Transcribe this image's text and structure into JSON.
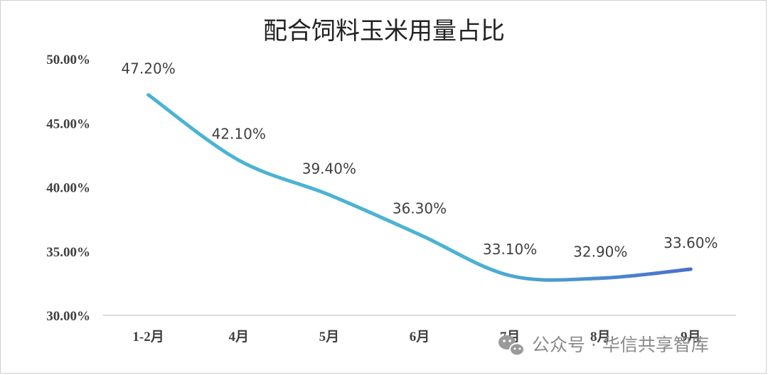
{
  "chart_data": {
    "type": "line",
    "title": "配合饲料玉米用量占比",
    "xlabel": "",
    "ylabel": "",
    "categories": [
      "1-2月",
      "4月",
      "5月",
      "6月",
      "7月",
      "8月",
      "9月"
    ],
    "series": [
      {
        "values": [
          47.2,
          42.1,
          39.4,
          36.3,
          33.1,
          32.9,
          33.6
        ]
      }
    ],
    "data_labels": [
      "47.20%",
      "42.10%",
      "39.40%",
      "36.30%",
      "33.10%",
      "32.90%",
      "33.60%"
    ],
    "ylim": [
      30,
      50
    ],
    "yticks": [
      "30.00%",
      "35.00%",
      "40.00%",
      "45.00%",
      "50.00%"
    ],
    "grid": false,
    "line_gradient": [
      "#4bb3d3",
      "#4a6fcd"
    ]
  },
  "watermark": {
    "icon": "wechat-icon",
    "text": "公众号 · 华信共享智库"
  }
}
